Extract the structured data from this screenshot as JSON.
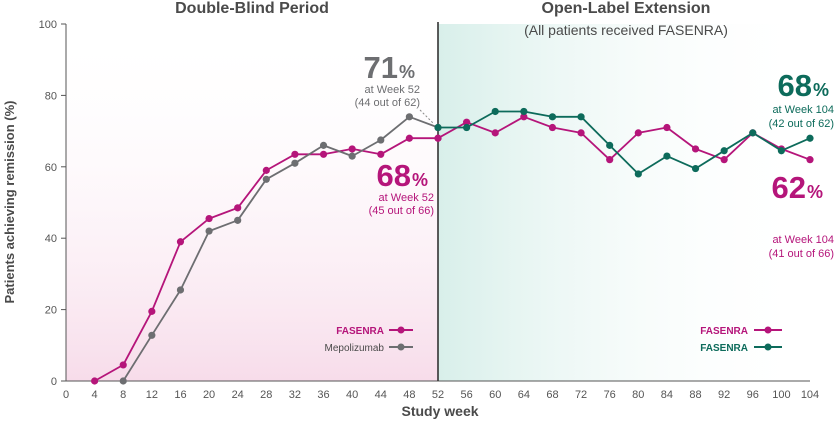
{
  "chart_data": {
    "type": "line",
    "xlabel": "Study week",
    "ylabel": "Patients achieving remission (%)",
    "ylim": [
      0,
      100
    ],
    "yticks": [
      "0",
      "20",
      "40",
      "60",
      "80",
      "100"
    ],
    "xticks": [
      "0",
      "4",
      "8",
      "12",
      "16",
      "20",
      "24",
      "28",
      "32",
      "36",
      "40",
      "44",
      "48",
      "52",
      "56",
      "60",
      "64",
      "68",
      "72",
      "76",
      "80",
      "84",
      "88",
      "92",
      "96",
      "100",
      "104"
    ],
    "periods": [
      {
        "title": "Double-Blind Period",
        "subtitle": "",
        "x_start": 0,
        "x_end": 52
      },
      {
        "title": "Open-Label Extension",
        "subtitle": "(All patients received FASENRA)",
        "x_start": 52,
        "x_end": 104
      }
    ],
    "legends": [
      {
        "position": "bottom-center",
        "entries": [
          {
            "label": "FASENRA",
            "color": "#b5157a"
          },
          {
            "label": "Mepolizumab",
            "color": "#6d6e71"
          }
        ]
      },
      {
        "position": "bottom-right",
        "entries": [
          {
            "label": "FASENRA",
            "color": "#b5157a"
          },
          {
            "label": "FASENRA",
            "color": "#0d6b5b"
          }
        ]
      }
    ],
    "series": [
      {
        "key": "fasenra_db",
        "color": "#b5157a",
        "x": [
          4,
          8,
          12,
          16,
          20,
          24,
          28,
          32,
          36,
          40,
          44,
          48,
          52
        ],
        "y": [
          0,
          4.5,
          19.5,
          39,
          45.5,
          48.5,
          59,
          63.5,
          63.5,
          65,
          63.5,
          68,
          68
        ]
      },
      {
        "key": "mepolizumab_db",
        "color": "#6d6e71",
        "x": [
          8,
          12,
          16,
          20,
          24,
          28,
          32,
          36,
          40,
          44,
          48,
          52
        ],
        "y": [
          0,
          12.8,
          25.5,
          42,
          45,
          56.5,
          61,
          66,
          63,
          67.5,
          74,
          71
        ]
      },
      {
        "key": "fasenra_ole_from_fasenra",
        "color": "#b5157a",
        "x": [
          52,
          56,
          60,
          64,
          68,
          72,
          76,
          80,
          84,
          88,
          92,
          96,
          100,
          104
        ],
        "y": [
          68,
          72.5,
          69.5,
          74,
          71,
          69.5,
          62,
          69.5,
          71,
          65,
          62,
          69.5,
          65,
          62
        ]
      },
      {
        "key": "fasenra_ole_from_mepolizumab",
        "color": "#0d6b5b",
        "x": [
          52,
          56,
          60,
          64,
          68,
          72,
          76,
          80,
          84,
          88,
          92,
          96,
          100,
          104
        ],
        "y": [
          71,
          71,
          75.5,
          75.5,
          74,
          74,
          66,
          58,
          63,
          59.5,
          64.5,
          69.5,
          64.5,
          68
        ]
      }
    ],
    "annotations": [
      {
        "key": "mepo52",
        "value": "71",
        "unit": "%",
        "line1": "at Week 52",
        "line2": "(44 out of 62)",
        "color": "#6d6e71"
      },
      {
        "key": "fas52",
        "value": "68",
        "unit": "%",
        "line1": "at Week 52",
        "line2": "(45 out of 66)",
        "color": "#b5157a"
      },
      {
        "key": "teal104",
        "value": "68",
        "unit": "%",
        "line1": "at Week 104",
        "line2": "(42 out of 62)",
        "color": "#0d6b5b"
      },
      {
        "key": "fas104",
        "value": "62",
        "unit": "%",
        "line1": "at Week 104",
        "line2": "(41 out of 66)",
        "color": "#b5157a"
      }
    ]
  }
}
